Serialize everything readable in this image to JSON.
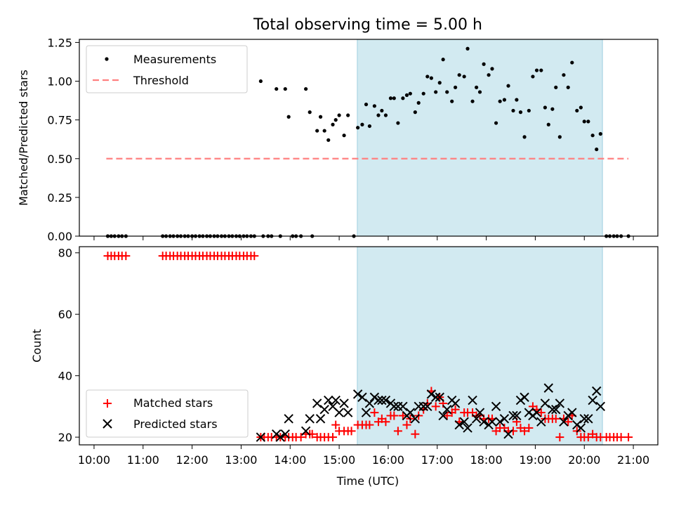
{
  "chart_data": {
    "title": "Total observing time = 5.00 h",
    "xlabel": "Time (UTC)",
    "x_tick_labels": [
      "10:00",
      "11:00",
      "12:00",
      "13:00",
      "14:00",
      "15:00",
      "16:00",
      "17:00",
      "18:00",
      "19:00",
      "20:00",
      "21:00"
    ],
    "x_range_hours": [
      9.7,
      21.5
    ],
    "observing_window_hours": [
      15.37,
      20.37
    ],
    "colors": {
      "window": "#add8e6",
      "threshold": "#ff8080",
      "measurement": "#000000",
      "matched": "#ff0000",
      "predicted": "#000000"
    },
    "top": {
      "type": "scatter",
      "ylabel": "Matched/Predicted stars",
      "ylim": [
        0,
        1.27
      ],
      "yticks": [
        "0.00",
        "0.25",
        "0.50",
        "0.75",
        "1.00",
        "1.25"
      ],
      "threshold": {
        "value": 0.5,
        "x_range_hours": [
          10.25,
          20.9
        ]
      },
      "legend": [
        "Measurements",
        "Threshold"
      ],
      "legend_position": "upper-left",
      "measurements": [
        [
          10.28,
          0
        ],
        [
          10.35,
          0
        ],
        [
          10.42,
          0
        ],
        [
          10.5,
          0
        ],
        [
          10.57,
          0
        ],
        [
          10.65,
          0
        ],
        [
          11.4,
          0
        ],
        [
          11.47,
          0
        ],
        [
          11.55,
          0
        ],
        [
          11.62,
          0
        ],
        [
          11.7,
          0
        ],
        [
          11.77,
          0
        ],
        [
          11.85,
          0
        ],
        [
          11.92,
          0
        ],
        [
          12.0,
          0
        ],
        [
          12.07,
          0
        ],
        [
          12.15,
          0
        ],
        [
          12.22,
          0
        ],
        [
          12.3,
          0
        ],
        [
          12.37,
          0
        ],
        [
          12.45,
          0
        ],
        [
          12.52,
          0
        ],
        [
          12.6,
          0
        ],
        [
          12.67,
          0
        ],
        [
          12.75,
          0
        ],
        [
          12.82,
          0
        ],
        [
          12.9,
          0
        ],
        [
          12.97,
          0
        ],
        [
          13.05,
          0
        ],
        [
          13.12,
          0
        ],
        [
          13.2,
          0
        ],
        [
          13.27,
          0
        ],
        [
          13.4,
          1.0
        ],
        [
          13.45,
          0
        ],
        [
          13.55,
          0
        ],
        [
          13.62,
          0
        ],
        [
          13.72,
          0.95
        ],
        [
          13.8,
          0
        ],
        [
          13.9,
          0.95
        ],
        [
          13.97,
          0.77
        ],
        [
          14.05,
          0
        ],
        [
          14.12,
          0
        ],
        [
          14.22,
          0
        ],
        [
          14.32,
          0.95
        ],
        [
          14.4,
          0.8
        ],
        [
          14.45,
          0
        ],
        [
          14.55,
          0.68
        ],
        [
          14.62,
          0.77
        ],
        [
          14.7,
          0.68
        ],
        [
          14.78,
          0.62
        ],
        [
          14.87,
          0.72
        ],
        [
          14.93,
          0.75
        ],
        [
          15.0,
          0.78
        ],
        [
          15.1,
          0.65
        ],
        [
          15.18,
          0.78
        ],
        [
          15.3,
          0
        ],
        [
          15.38,
          0.7
        ],
        [
          15.47,
          0.72
        ],
        [
          15.55,
          0.85
        ],
        [
          15.62,
          0.71
        ],
        [
          15.72,
          0.84
        ],
        [
          15.8,
          0.78
        ],
        [
          15.87,
          0.81
        ],
        [
          15.95,
          0.78
        ],
        [
          16.05,
          0.89
        ],
        [
          16.12,
          0.89
        ],
        [
          16.2,
          0.73
        ],
        [
          16.3,
          0.89
        ],
        [
          16.38,
          0.91
        ],
        [
          16.45,
          0.92
        ],
        [
          16.55,
          0.8
        ],
        [
          16.62,
          0.86
        ],
        [
          16.72,
          0.92
        ],
        [
          16.8,
          1.03
        ],
        [
          16.88,
          1.02
        ],
        [
          16.97,
          0.93
        ],
        [
          17.05,
          0.99
        ],
        [
          17.12,
          1.14
        ],
        [
          17.2,
          0.93
        ],
        [
          17.3,
          0.87
        ],
        [
          17.37,
          0.96
        ],
        [
          17.45,
          1.04
        ],
        [
          17.55,
          1.03
        ],
        [
          17.62,
          1.21
        ],
        [
          17.72,
          0.87
        ],
        [
          17.8,
          0.96
        ],
        [
          17.87,
          0.93
        ],
        [
          17.95,
          1.11
        ],
        [
          18.05,
          1.04
        ],
        [
          18.12,
          1.08
        ],
        [
          18.2,
          0.73
        ],
        [
          18.28,
          0.87
        ],
        [
          18.37,
          0.88
        ],
        [
          18.45,
          0.97
        ],
        [
          18.55,
          0.81
        ],
        [
          18.62,
          0.88
        ],
        [
          18.7,
          0.8
        ],
        [
          18.78,
          0.64
        ],
        [
          18.87,
          0.81
        ],
        [
          18.95,
          1.03
        ],
        [
          19.03,
          1.07
        ],
        [
          19.12,
          1.07
        ],
        [
          19.2,
          0.83
        ],
        [
          19.27,
          0.72
        ],
        [
          19.35,
          0.82
        ],
        [
          19.42,
          0.96
        ],
        [
          19.5,
          0.64
        ],
        [
          19.58,
          1.04
        ],
        [
          19.67,
          0.96
        ],
        [
          19.75,
          1.12
        ],
        [
          19.85,
          0.81
        ],
        [
          19.93,
          0.83
        ],
        [
          20.0,
          0.74
        ],
        [
          20.08,
          0.74
        ],
        [
          20.17,
          0.65
        ],
        [
          20.25,
          0.56
        ],
        [
          20.33,
          0.66
        ],
        [
          20.45,
          0
        ],
        [
          20.52,
          0
        ],
        [
          20.6,
          0
        ],
        [
          20.67,
          0
        ],
        [
          20.75,
          0
        ],
        [
          20.9,
          0
        ]
      ]
    },
    "bottom": {
      "type": "scatter",
      "ylabel": "Count",
      "ylim": [
        17.5,
        82
      ],
      "yticks": [
        "20",
        "40",
        "60",
        "80"
      ],
      "legend": [
        "Matched stars",
        "Predicted stars"
      ],
      "legend_position": "lower-left",
      "matched": [
        [
          10.28,
          79
        ],
        [
          10.35,
          79
        ],
        [
          10.42,
          79
        ],
        [
          10.5,
          79
        ],
        [
          10.57,
          79
        ],
        [
          10.65,
          79
        ],
        [
          11.4,
          79
        ],
        [
          11.47,
          79
        ],
        [
          11.55,
          79
        ],
        [
          11.62,
          79
        ],
        [
          11.7,
          79
        ],
        [
          11.77,
          79
        ],
        [
          11.85,
          79
        ],
        [
          11.92,
          79
        ],
        [
          12.0,
          79
        ],
        [
          12.07,
          79
        ],
        [
          12.15,
          79
        ],
        [
          12.22,
          79
        ],
        [
          12.3,
          79
        ],
        [
          12.37,
          79
        ],
        [
          12.45,
          79
        ],
        [
          12.52,
          79
        ],
        [
          12.6,
          79
        ],
        [
          12.67,
          79
        ],
        [
          12.75,
          79
        ],
        [
          12.82,
          79
        ],
        [
          12.9,
          79
        ],
        [
          12.97,
          79
        ],
        [
          13.05,
          79
        ],
        [
          13.12,
          79
        ],
        [
          13.2,
          79
        ],
        [
          13.27,
          79
        ],
        [
          13.4,
          20
        ],
        [
          13.47,
          20
        ],
        [
          13.55,
          20
        ],
        [
          13.62,
          20
        ],
        [
          13.72,
          20
        ],
        [
          13.8,
          20
        ],
        [
          13.9,
          20
        ],
        [
          13.97,
          20
        ],
        [
          14.05,
          20
        ],
        [
          14.12,
          20
        ],
        [
          14.22,
          20
        ],
        [
          14.32,
          21
        ],
        [
          14.4,
          21
        ],
        [
          14.45,
          21
        ],
        [
          14.55,
          20
        ],
        [
          14.62,
          20
        ],
        [
          14.7,
          20
        ],
        [
          14.78,
          20
        ],
        [
          14.87,
          20
        ],
        [
          14.93,
          24
        ],
        [
          15.0,
          22
        ],
        [
          15.1,
          22
        ],
        [
          15.18,
          22
        ],
        [
          15.25,
          22
        ],
        [
          15.38,
          24
        ],
        [
          15.47,
          24
        ],
        [
          15.55,
          24
        ],
        [
          15.62,
          24
        ],
        [
          15.72,
          28
        ],
        [
          15.8,
          25
        ],
        [
          15.87,
          26
        ],
        [
          15.95,
          25
        ],
        [
          16.05,
          27
        ],
        [
          16.12,
          27
        ],
        [
          16.2,
          22
        ],
        [
          16.3,
          27
        ],
        [
          16.38,
          24
        ],
        [
          16.45,
          26
        ],
        [
          16.55,
          21
        ],
        [
          16.62,
          27
        ],
        [
          16.72,
          29
        ],
        [
          16.8,
          31
        ],
        [
          16.88,
          35
        ],
        [
          16.97,
          30
        ],
        [
          17.05,
          33
        ],
        [
          17.12,
          31
        ],
        [
          17.2,
          27
        ],
        [
          17.3,
          28
        ],
        [
          17.37,
          29
        ],
        [
          17.45,
          25
        ],
        [
          17.55,
          28
        ],
        [
          17.62,
          28
        ],
        [
          17.72,
          28
        ],
        [
          17.8,
          27
        ],
        [
          17.87,
          27
        ],
        [
          17.95,
          26
        ],
        [
          18.05,
          26
        ],
        [
          18.12,
          26
        ],
        [
          18.2,
          22
        ],
        [
          18.28,
          23
        ],
        [
          18.37,
          23
        ],
        [
          18.45,
          22
        ],
        [
          18.55,
          22
        ],
        [
          18.62,
          25
        ],
        [
          18.7,
          23
        ],
        [
          18.78,
          22
        ],
        [
          18.87,
          23
        ],
        [
          18.95,
          30
        ],
        [
          19.03,
          29
        ],
        [
          19.12,
          28
        ],
        [
          19.2,
          26
        ],
        [
          19.27,
          26
        ],
        [
          19.35,
          26
        ],
        [
          19.42,
          26
        ],
        [
          19.5,
          20
        ],
        [
          19.58,
          26
        ],
        [
          19.67,
          25
        ],
        [
          19.75,
          27
        ],
        [
          19.85,
          22
        ],
        [
          19.93,
          20
        ],
        [
          20.0,
          20
        ],
        [
          20.08,
          20
        ],
        [
          20.17,
          21
        ],
        [
          20.25,
          20
        ],
        [
          20.33,
          20
        ],
        [
          20.45,
          20
        ],
        [
          20.52,
          20
        ],
        [
          20.6,
          20
        ],
        [
          20.67,
          20
        ],
        [
          20.75,
          20
        ],
        [
          20.9,
          20
        ]
      ],
      "predicted": [
        [
          13.4,
          20
        ],
        [
          13.72,
          21
        ],
        [
          13.8,
          20
        ],
        [
          13.9,
          21
        ],
        [
          13.97,
          26
        ],
        [
          14.32,
          22
        ],
        [
          14.4,
          26
        ],
        [
          14.55,
          31
        ],
        [
          14.62,
          26
        ],
        [
          14.7,
          29
        ],
        [
          14.78,
          32
        ],
        [
          14.87,
          30
        ],
        [
          14.93,
          32
        ],
        [
          15.0,
          28
        ],
        [
          15.1,
          31
        ],
        [
          15.18,
          28
        ],
        [
          15.38,
          34
        ],
        [
          15.47,
          33
        ],
        [
          15.55,
          28
        ],
        [
          15.62,
          31
        ],
        [
          15.72,
          33
        ],
        [
          15.8,
          32
        ],
        [
          15.87,
          32
        ],
        [
          15.95,
          32
        ],
        [
          16.05,
          31
        ],
        [
          16.12,
          30
        ],
        [
          16.2,
          30
        ],
        [
          16.3,
          30
        ],
        [
          16.38,
          27
        ],
        [
          16.45,
          28
        ],
        [
          16.55,
          26
        ],
        [
          16.62,
          30
        ],
        [
          16.72,
          30
        ],
        [
          16.8,
          30
        ],
        [
          16.88,
          34
        ],
        [
          16.97,
          33
        ],
        [
          17.05,
          33
        ],
        [
          17.12,
          27
        ],
        [
          17.2,
          29
        ],
        [
          17.3,
          32
        ],
        [
          17.37,
          31
        ],
        [
          17.45,
          24
        ],
        [
          17.55,
          25
        ],
        [
          17.62,
          23
        ],
        [
          17.72,
          32
        ],
        [
          17.8,
          26
        ],
        [
          17.87,
          28
        ],
        [
          17.95,
          25
        ],
        [
          18.05,
          24
        ],
        [
          18.12,
          25
        ],
        [
          18.2,
          30
        ],
        [
          18.28,
          25
        ],
        [
          18.37,
          26
        ],
        [
          18.45,
          21
        ],
        [
          18.55,
          27
        ],
        [
          18.62,
          27
        ],
        [
          18.7,
          32
        ],
        [
          18.78,
          33
        ],
        [
          18.87,
          28
        ],
        [
          18.95,
          27
        ],
        [
          19.03,
          28
        ],
        [
          19.12,
          25
        ],
        [
          19.2,
          31
        ],
        [
          19.27,
          36
        ],
        [
          19.35,
          29
        ],
        [
          19.42,
          29
        ],
        [
          19.5,
          31
        ],
        [
          19.58,
          25
        ],
        [
          19.67,
          27
        ],
        [
          19.75,
          28
        ],
        [
          19.85,
          24
        ],
        [
          19.93,
          23
        ],
        [
          20.0,
          26
        ],
        [
          20.08,
          26
        ],
        [
          20.17,
          32
        ],
        [
          20.25,
          35
        ],
        [
          20.33,
          30
        ]
      ]
    }
  }
}
